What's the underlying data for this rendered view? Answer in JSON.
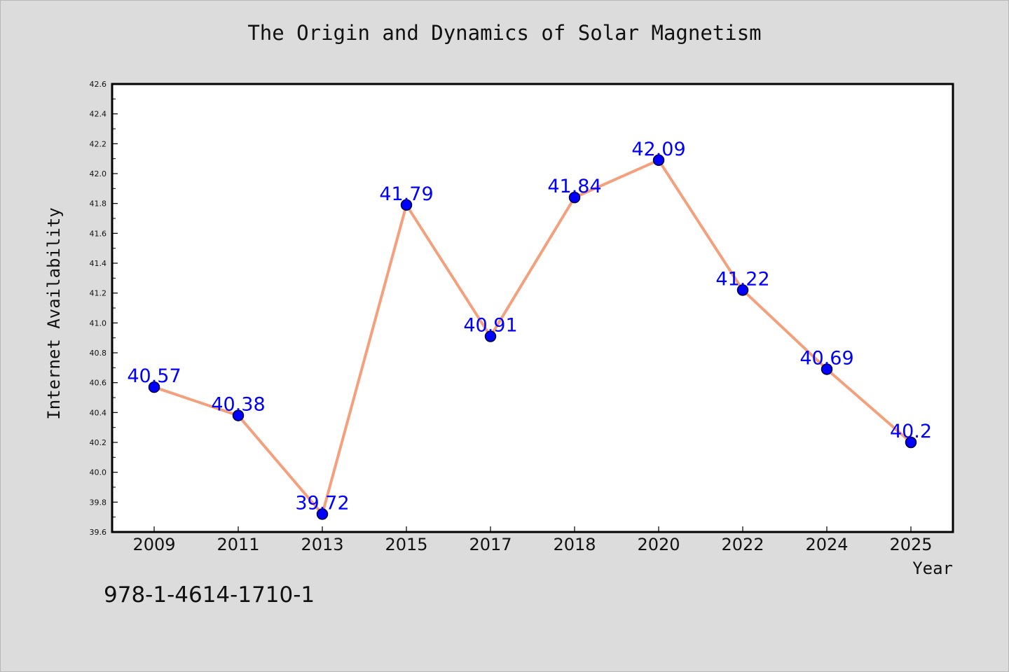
{
  "title": "The Origin and Dynamics of Solar Magnetism",
  "caption_code": "978-1-4614-1710-1",
  "colors": {
    "line": "#f4a07c",
    "marker": "#0000ff",
    "data_label": "#0000ff",
    "background": "#dcdcdc",
    "plot_background": "#ffffff"
  },
  "chart_data": {
    "type": "line",
    "categories": [
      "2009",
      "2011",
      "2013",
      "2015",
      "2017",
      "2018",
      "2020",
      "2022",
      "2024",
      "2025"
    ],
    "series": [
      {
        "values": [
          40.57,
          40.38,
          39.72,
          41.79,
          40.91,
          41.84,
          42.09,
          41.22,
          40.69,
          40.2
        ],
        "data_labels": [
          "40.57",
          "40.38",
          "39.72",
          "41.79",
          "40.91",
          "41.84",
          "42.09",
          "41.22",
          "40.69",
          "40.2"
        ]
      }
    ],
    "title": "The Origin and Dynamics of Solar Magnetism",
    "xlabel": "Year",
    "ylabel": "Internet Availability",
    "ylim": [
      39.6,
      42.6
    ],
    "yticks": [
      "39.6",
      "39.8",
      "40.0",
      "40.2",
      "40.4",
      "40.6",
      "40.8",
      "41.0",
      "41.2",
      "41.4",
      "41.6",
      "41.8",
      "42.0",
      "42.2",
      "42.4",
      "42.6"
    ],
    "grid": false,
    "legend": "none"
  }
}
